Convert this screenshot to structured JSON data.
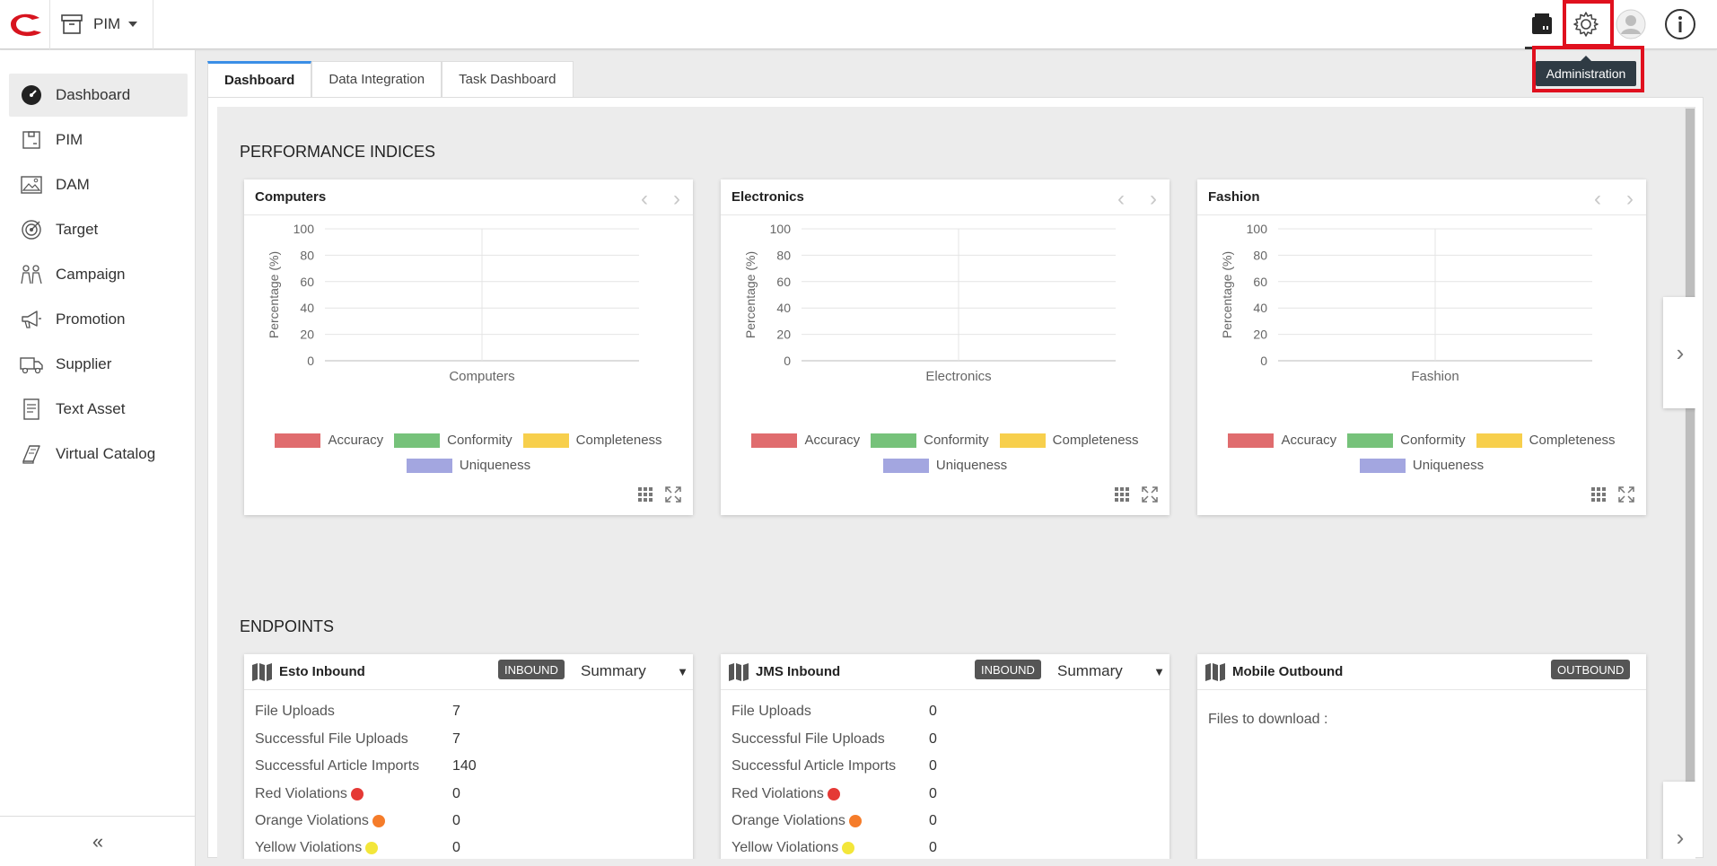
{
  "header": {
    "module_label": "PIM",
    "tooltip": "Administration",
    "icons": [
      "logo-icon",
      "archive-icon",
      "cart-icon",
      "gear-icon",
      "user-avatar-icon",
      "info-icon"
    ]
  },
  "sidebar": {
    "items": [
      {
        "label": "Dashboard",
        "icon": "dashboard-icon"
      },
      {
        "label": "PIM",
        "icon": "pim-icon"
      },
      {
        "label": "DAM",
        "icon": "image-icon"
      },
      {
        "label": "Target",
        "icon": "target-icon"
      },
      {
        "label": "Campaign",
        "icon": "campaign-icon"
      },
      {
        "label": "Promotion",
        "icon": "megaphone-icon"
      },
      {
        "label": "Supplier",
        "icon": "truck-icon"
      },
      {
        "label": "Text Asset",
        "icon": "document-icon"
      },
      {
        "label": "Virtual Catalog",
        "icon": "book-icon"
      }
    ],
    "collapse_label": "«"
  },
  "tabs": [
    "Dashboard",
    "Data Integration",
    "Task Dashboard"
  ],
  "performance": {
    "title": "PERFORMANCE INDICES",
    "cards": [
      {
        "title": "Computers"
      },
      {
        "title": "Electronics"
      },
      {
        "title": "Fashion"
      }
    ]
  },
  "chart_data": [
    {
      "type": "bar",
      "title": "Computers",
      "categories": [
        "Computers"
      ],
      "series": [
        {
          "name": "Accuracy",
          "values": [
            0
          ]
        },
        {
          "name": "Conformity",
          "values": [
            0
          ]
        },
        {
          "name": "Completeness",
          "values": [
            0
          ]
        },
        {
          "name": "Uniqueness",
          "values": [
            0
          ]
        }
      ],
      "ylabel": "Percentage (%)",
      "ylim": [
        0,
        100
      ],
      "yticks": [
        "0",
        "20",
        "40",
        "60",
        "80",
        "100"
      ],
      "legend": "bottom"
    },
    {
      "type": "bar",
      "title": "Electronics",
      "categories": [
        "Electronics"
      ],
      "series": [
        {
          "name": "Accuracy",
          "values": [
            0
          ]
        },
        {
          "name": "Conformity",
          "values": [
            0
          ]
        },
        {
          "name": "Completeness",
          "values": [
            0
          ]
        },
        {
          "name": "Uniqueness",
          "values": [
            0
          ]
        }
      ],
      "ylabel": "Percentage (%)",
      "ylim": [
        0,
        100
      ],
      "yticks": [
        "0",
        "20",
        "40",
        "60",
        "80",
        "100"
      ],
      "legend": "bottom"
    },
    {
      "type": "bar",
      "title": "Fashion",
      "categories": [
        "Fashion"
      ],
      "series": [
        {
          "name": "Accuracy",
          "values": [
            0
          ]
        },
        {
          "name": "Conformity",
          "values": [
            0
          ]
        },
        {
          "name": "Completeness",
          "values": [
            0
          ]
        },
        {
          "name": "Uniqueness",
          "values": [
            0
          ]
        }
      ],
      "ylabel": "Percentage (%)",
      "ylim": [
        0,
        100
      ],
      "yticks": [
        "0",
        "20",
        "40",
        "60",
        "80",
        "100"
      ],
      "legend": "bottom"
    }
  ],
  "legend_colors": {
    "Accuracy": "#e06c6e",
    "Conformity": "#76c27a",
    "Completeness": "#f7cf4c",
    "Uniqueness": "#a3a6e0"
  },
  "endpoints": {
    "title": "ENDPOINTS",
    "cards": [
      {
        "title": "Esto Inbound",
        "badge": "INBOUND",
        "select": "Summary",
        "stats": [
          {
            "label": "File Uploads",
            "value": "7"
          },
          {
            "label": "Successful File Uploads",
            "value": "7"
          },
          {
            "label": "Successful Article Imports",
            "value": "140"
          },
          {
            "label": "Red Violations",
            "value": "0",
            "dot": "#e53935"
          },
          {
            "label": "Orange Violations",
            "value": "0",
            "dot": "#f57c2a"
          },
          {
            "label": "Yellow Violations",
            "value": "0",
            "dot": "#f3e63a"
          }
        ]
      },
      {
        "title": "JMS Inbound",
        "badge": "INBOUND",
        "select": "Summary",
        "stats": [
          {
            "label": "File Uploads",
            "value": "0"
          },
          {
            "label": "Successful File Uploads",
            "value": "0"
          },
          {
            "label": "Successful Article Imports",
            "value": "0"
          },
          {
            "label": "Red Violations",
            "value": "0",
            "dot": "#e53935"
          },
          {
            "label": "Orange Violations",
            "value": "0",
            "dot": "#f57c2a"
          },
          {
            "label": "Yellow Violations",
            "value": "0",
            "dot": "#f3e63a"
          }
        ]
      },
      {
        "title": "Mobile Outbound",
        "badge": "OUTBOUND",
        "text": "Files to download :"
      }
    ]
  }
}
